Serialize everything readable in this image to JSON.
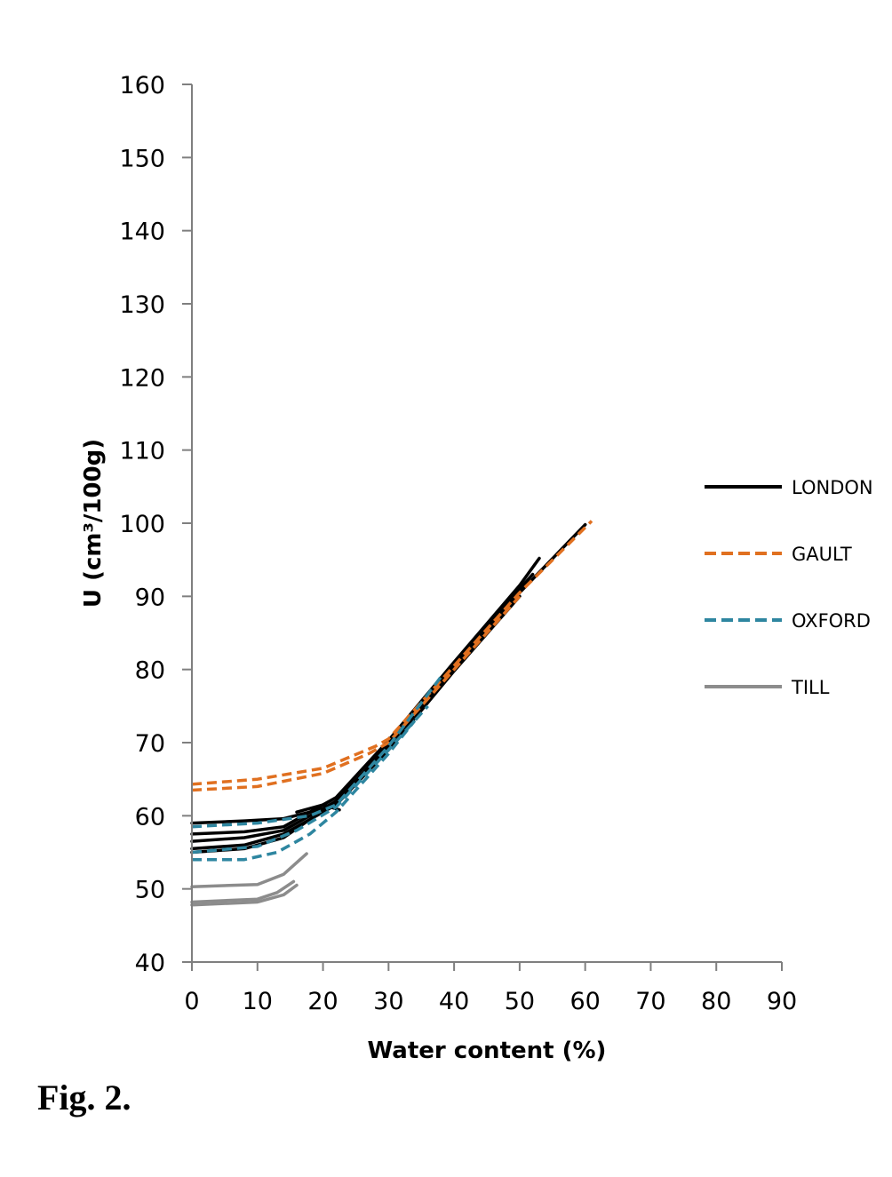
{
  "caption": "Fig. 2.",
  "chart_data": {
    "type": "line",
    "title": "",
    "xlabel": "Water content (%)",
    "ylabel": "U (cm³/100g)",
    "xlim": [
      0,
      90
    ],
    "ylim": [
      40,
      160
    ],
    "x_ticks": [
      0,
      10,
      20,
      30,
      40,
      50,
      60,
      70,
      80,
      90
    ],
    "y_ticks": [
      40,
      50,
      60,
      70,
      80,
      90,
      100,
      110,
      120,
      130,
      140,
      150,
      160
    ],
    "grid": false,
    "legend_position": "right",
    "series": [
      {
        "name": "LONDON",
        "color": "#000000",
        "style": "solid",
        "lines": [
          [
            [
              0,
              59
            ],
            [
              8,
              59.3
            ],
            [
              14,
              59.6
            ],
            [
              18,
              60.5
            ],
            [
              22,
              62.5
            ],
            [
              30,
              70.3
            ],
            [
              40,
              81
            ],
            [
              50,
              91.5
            ],
            [
              53,
              95.2
            ]
          ],
          [
            [
              0,
              57.5
            ],
            [
              8,
              57.8
            ],
            [
              14,
              58.5
            ],
            [
              18,
              60.5
            ],
            [
              22,
              61.5
            ],
            [
              30,
              70
            ],
            [
              40,
              80.6
            ],
            [
              50,
              91
            ],
            [
              52,
              93
            ]
          ],
          [
            [
              0,
              56.5
            ],
            [
              8,
              57
            ],
            [
              14,
              58
            ],
            [
              18,
              60
            ],
            [
              22,
              62
            ],
            [
              30,
              69.5
            ],
            [
              40,
              80
            ],
            [
              50,
              90.5
            ],
            [
              60,
              99.8
            ]
          ],
          [
            [
              0,
              55.5
            ],
            [
              8,
              56
            ],
            [
              14,
              57.5
            ],
            [
              18,
              59.5
            ],
            [
              22,
              61.5
            ],
            [
              30,
              69
            ],
            [
              40,
              79.8
            ],
            [
              50,
              90
            ]
          ],
          [
            [
              0,
              55
            ],
            [
              8,
              55.5
            ],
            [
              14,
              57
            ],
            [
              18,
              59.5
            ],
            [
              22,
              62
            ],
            [
              30,
              69.5
            ],
            [
              40,
              80.5
            ],
            [
              48,
              88.5
            ]
          ],
          [
            [
              16,
              60.5
            ],
            [
              20,
              61.5
            ],
            [
              22.5,
              60.8
            ]
          ]
        ]
      },
      {
        "name": "GAULT",
        "color": "#E07020",
        "style": "dashed",
        "lines": [
          [
            [
              0,
              64.3
            ],
            [
              10,
              65
            ],
            [
              20,
              66.5
            ],
            [
              28,
              69.5
            ],
            [
              30,
              70.5
            ],
            [
              40,
              80.5
            ],
            [
              50,
              90.5
            ],
            [
              61,
              100.3
            ]
          ],
          [
            [
              0,
              63.5
            ],
            [
              10,
              64
            ],
            [
              20,
              65.8
            ],
            [
              27,
              68.5
            ],
            [
              30,
              70
            ],
            [
              40,
              80
            ],
            [
              50,
              90
            ]
          ]
        ]
      },
      {
        "name": "OXFORD",
        "color": "#2E86A0",
        "style": "dashed",
        "lines": [
          [
            [
              0,
              58.5
            ],
            [
              10,
              59
            ],
            [
              18,
              60
            ],
            [
              22,
              61.5
            ],
            [
              30,
              69.5
            ],
            [
              38,
              79
            ]
          ],
          [
            [
              0,
              55
            ],
            [
              10,
              55.8
            ],
            [
              16,
              58
            ],
            [
              22,
              61.2
            ],
            [
              30,
              69
            ],
            [
              36,
              75
            ]
          ],
          [
            [
              0,
              54
            ],
            [
              8,
              54
            ],
            [
              13,
              55
            ],
            [
              18,
              57.5
            ],
            [
              22,
              60.5
            ],
            [
              30,
              68.5
            ],
            [
              34,
              73
            ]
          ]
        ]
      },
      {
        "name": "TILL",
        "color": "#8C8C8C",
        "style": "solid",
        "lines": [
          [
            [
              0,
              50.3
            ],
            [
              10,
              50.6
            ],
            [
              14,
              52
            ],
            [
              17.5,
              54.8
            ]
          ],
          [
            [
              0,
              48.2
            ],
            [
              10,
              48.6
            ],
            [
              13,
              49.5
            ],
            [
              15.5,
              51
            ]
          ],
          [
            [
              0,
              47.8
            ],
            [
              10,
              48.2
            ],
            [
              14,
              49.2
            ],
            [
              16,
              50.5
            ]
          ]
        ]
      }
    ]
  }
}
